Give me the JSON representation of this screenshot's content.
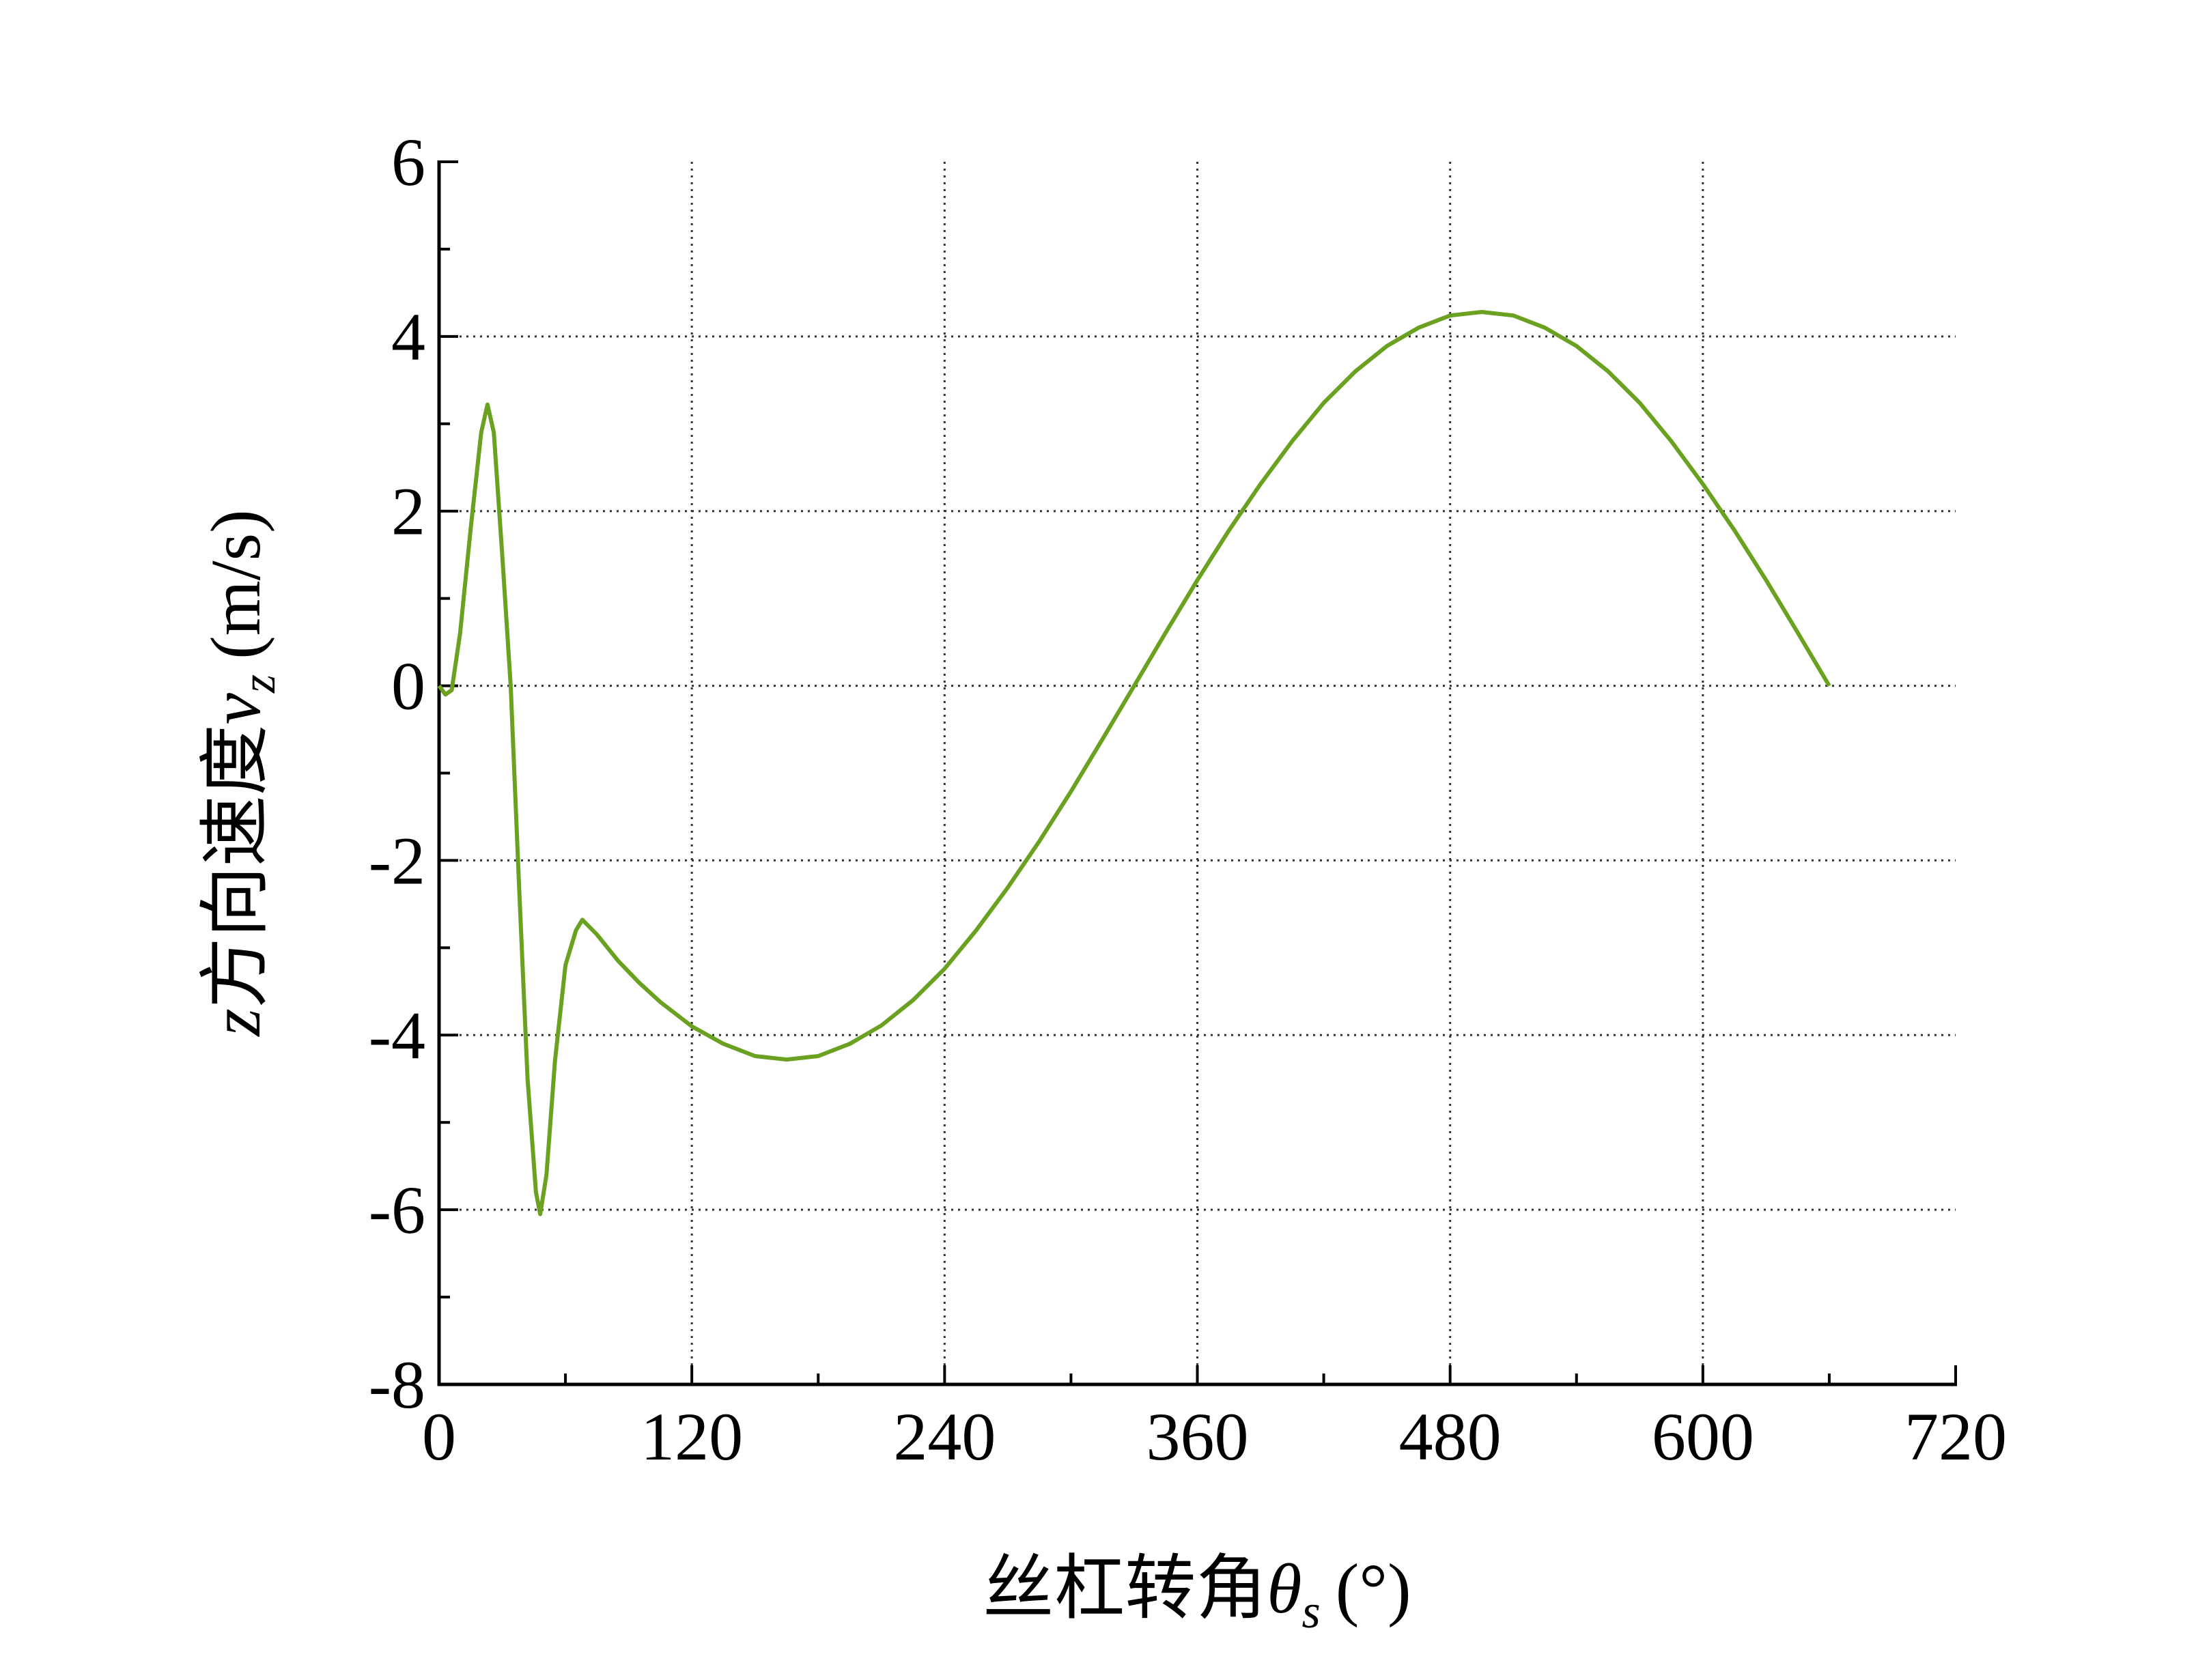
{
  "chart_data": {
    "type": "line",
    "xlabel": [
      "丝杠转角",
      "θ",
      "s",
      "(°)"
    ],
    "ylabel": [
      "z",
      "方向速度",
      "v",
      "z",
      "(m/s)"
    ],
    "x": [
      0,
      3,
      6,
      10,
      15,
      20,
      23,
      26,
      30,
      34,
      38,
      42,
      46,
      48,
      51,
      55,
      60,
      65,
      68,
      75,
      85,
      95,
      105,
      120,
      135,
      150,
      165,
      180,
      195,
      210,
      225,
      240,
      255,
      270,
      285,
      300,
      315,
      330,
      345,
      360,
      375,
      390,
      405,
      420,
      435,
      450,
      465,
      480,
      495,
      510,
      525,
      540,
      555,
      570,
      585,
      600,
      615,
      630,
      645,
      660
    ],
    "values": [
      0,
      -0.1,
      -0.05,
      0.6,
      1.8,
      2.9,
      3.22,
      2.9,
      1.5,
      0,
      -2.3,
      -4.5,
      -5.8,
      -6.05,
      -5.6,
      -4.3,
      -3.2,
      -2.8,
      -2.68,
      -2.85,
      -3.15,
      -3.4,
      -3.62,
      -3.9,
      -4.1,
      -4.24,
      -4.28,
      -4.24,
      -4.1,
      -3.89,
      -3.6,
      -3.24,
      -2.8,
      -2.31,
      -1.78,
      -1.21,
      -0.61,
      0,
      0.61,
      1.21,
      1.78,
      2.31,
      2.8,
      3.24,
      3.6,
      3.89,
      4.1,
      4.24,
      4.28,
      4.24,
      4.1,
      3.89,
      3.6,
      3.24,
      2.8,
      2.31,
      1.78,
      1.21,
      0.61,
      0
    ],
    "color": "#6aa121",
    "xlim": [
      0,
      720
    ],
    "xticks": [
      0,
      120,
      240,
      360,
      480,
      600,
      720
    ],
    "ylim": [
      -8,
      6
    ],
    "yticks": [
      -8,
      -6,
      -4,
      -2,
      0,
      2,
      4,
      6
    ],
    "grid": true
  }
}
